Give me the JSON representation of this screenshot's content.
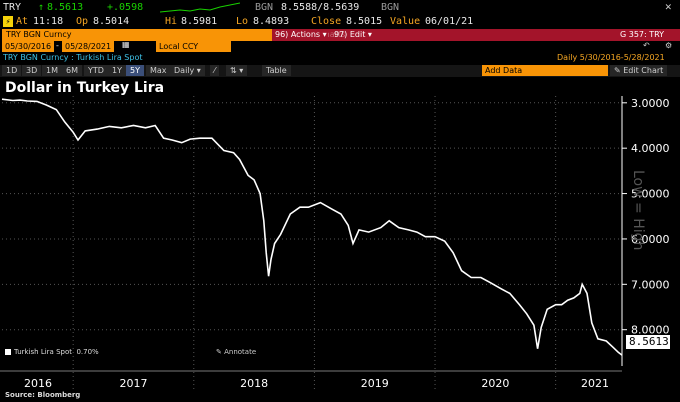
{
  "header": {
    "ticker": "TRY",
    "last_price": "8.5613",
    "change": "+.0598",
    "bid_ask_source": "BGN",
    "bid_ask": "8.5588/8.5639",
    "bid_ask_source2": "BGN",
    "at_label": "At",
    "time": "11:18",
    "open_label": "Op",
    "open": "8.5014",
    "hi_label": "Hi",
    "hi": "8.5981",
    "lo_label": "Lo",
    "lo": "8.4893",
    "close_label": "Close",
    "close": "8.5015",
    "value_label": "Value",
    "value_date": "06/01/21"
  },
  "toolbar": {
    "security": "TRY BGN Curncy",
    "suggested": "Suggested Charts",
    "actions": "96) Actions ▾",
    "edit": "97) Edit ▾",
    "page_code": "G 357: TRY",
    "start_date": "05/30/2016",
    "end_date": "05/28/2021",
    "currency": "Local CCY",
    "subtitle": "TRY BGN Curncy : Turkish Lira Spot",
    "range_label": "Daily  5/30/2016-5/28/2021",
    "periods": [
      "1D",
      "3D",
      "1M",
      "6M",
      "YTD",
      "1Y",
      "5Y",
      "Max"
    ],
    "selected_period": "5Y",
    "frequency": "Daily ▾",
    "table": "Table",
    "add_data": "Add Data",
    "edit_chart": "✎ Edit Chart"
  },
  "chart": {
    "title": "Dollar in Turkey Lira",
    "legend_label": "Turkish Lira Spot",
    "legend_pct": "0.70%",
    "annotate": "Annotate",
    "watermark": "Low = High",
    "source": "Source: Bloomberg",
    "last_value_label": "8.5613",
    "line_color": "#ffffff"
  },
  "chart_data": {
    "type": "line",
    "title": "Dollar in Turkey Lira",
    "xlabel": "",
    "ylabel": "",
    "x_tick_labels": [
      "2016",
      "2017",
      "2018",
      "2019",
      "2020",
      "2021"
    ],
    "y_tick_labels": [
      "3.0000",
      "4.0000",
      "5.0000",
      "6.0000",
      "7.0000",
      "8.0000"
    ],
    "y_inverted": true,
    "ylim": [
      2.85,
      8.8
    ],
    "xlim": [
      2016.41,
      2021.55
    ],
    "series": [
      {
        "name": "Turkish Lira Spot",
        "x": [
          2016.41,
          2016.5,
          2016.56,
          2016.62,
          2016.7,
          2016.78,
          2016.86,
          2016.93,
          2017.0,
          2017.04,
          2017.1,
          2017.2,
          2017.3,
          2017.4,
          2017.5,
          2017.6,
          2017.68,
          2017.75,
          2017.82,
          2017.9,
          2017.97,
          2018.05,
          2018.15,
          2018.25,
          2018.33,
          2018.38,
          2018.45,
          2018.5,
          2018.55,
          2018.58,
          2018.6,
          2018.62,
          2018.64,
          2018.67,
          2018.72,
          2018.8,
          2018.88,
          2018.95,
          2019.05,
          2019.15,
          2019.22,
          2019.28,
          2019.32,
          2019.37,
          2019.45,
          2019.55,
          2019.62,
          2019.7,
          2019.78,
          2019.85,
          2019.92,
          2020.0,
          2020.08,
          2020.15,
          2020.22,
          2020.3,
          2020.38,
          2020.45,
          2020.55,
          2020.62,
          2020.7,
          2020.76,
          2020.82,
          2020.85,
          2020.88,
          2020.93,
          2021.0,
          2021.05,
          2021.1,
          2021.15,
          2021.2,
          2021.22,
          2021.26,
          2021.3,
          2021.35,
          2021.42,
          2021.48,
          2021.52,
          2021.55
        ],
        "values": [
          2.92,
          2.95,
          2.94,
          2.96,
          2.97,
          3.05,
          3.15,
          3.42,
          3.65,
          3.82,
          3.62,
          3.58,
          3.52,
          3.55,
          3.5,
          3.55,
          3.5,
          3.78,
          3.82,
          3.88,
          3.8,
          3.78,
          3.78,
          4.05,
          4.1,
          4.25,
          4.6,
          4.7,
          5.0,
          5.6,
          6.3,
          6.82,
          6.45,
          6.1,
          5.9,
          5.45,
          5.3,
          5.3,
          5.2,
          5.35,
          5.45,
          5.7,
          6.1,
          5.8,
          5.85,
          5.75,
          5.6,
          5.75,
          5.8,
          5.85,
          5.95,
          5.95,
          6.05,
          6.3,
          6.7,
          6.85,
          6.85,
          6.95,
          7.1,
          7.2,
          7.45,
          7.65,
          7.9,
          8.42,
          7.95,
          7.55,
          7.45,
          7.45,
          7.35,
          7.3,
          7.2,
          7.0,
          7.2,
          7.85,
          8.2,
          8.25,
          8.4,
          8.5,
          8.56
        ]
      }
    ]
  }
}
